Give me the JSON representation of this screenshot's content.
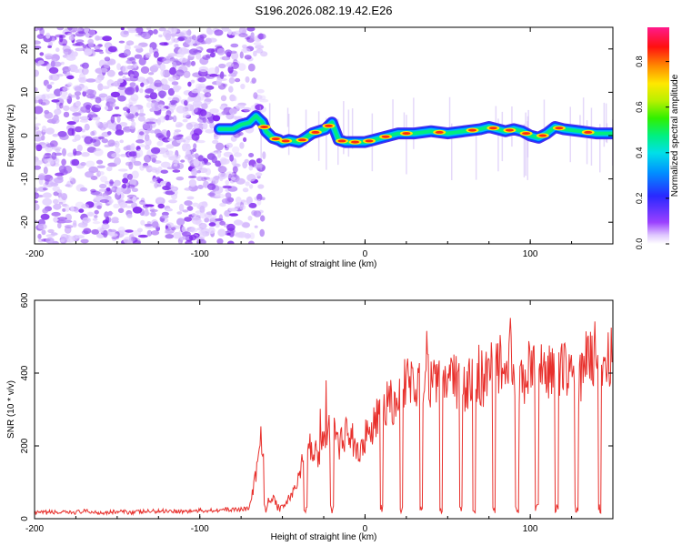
{
  "title": "S196.2026.082.19.42.E26",
  "chart_data": [
    {
      "type": "heatmap",
      "panel": "spectrogram",
      "xlabel": "Height of straight line (km)",
      "ylabel": "Frequency (Hz)",
      "xlim": [
        -200,
        150
      ],
      "ylim": [
        -25,
        25
      ],
      "xticks": [
        -200,
        -100,
        0,
        100
      ],
      "yticks": [
        -20,
        -10,
        0,
        10,
        20
      ],
      "ridge": {
        "x": [
          -88,
          -80,
          -75,
          -70,
          -66,
          -62,
          -60,
          -56,
          -52,
          -50,
          -46,
          -40,
          -36,
          -32,
          -28,
          -24,
          -20,
          -16,
          -12,
          -8,
          -4,
          0,
          5,
          10,
          15,
          20,
          30,
          40,
          50,
          60,
          70,
          75,
          80,
          85,
          90,
          95,
          100,
          105,
          110,
          115,
          120,
          130,
          140,
          150
        ],
        "y": [
          1.5,
          1.5,
          2.5,
          3.0,
          4.5,
          3.0,
          1.0,
          -0.5,
          -1.0,
          -1.5,
          -1.0,
          -1.5,
          -0.5,
          0.5,
          1.0,
          1.5,
          3.0,
          -1.0,
          -1.5,
          -1.5,
          -1.5,
          -1.5,
          -1.0,
          -0.5,
          0.0,
          0.5,
          0.5,
          1.0,
          0.5,
          1.0,
          1.5,
          2.0,
          1.5,
          1.0,
          1.5,
          1.0,
          0.0,
          -0.5,
          0.5,
          2.0,
          1.5,
          1.0,
          0.5,
          0.5
        ]
      },
      "noise_region_x": [
        -200,
        -75
      ],
      "colorbar": {
        "label": "Normalized spectral amplitude",
        "range": [
          0.0,
          0.95
        ],
        "ticks": [
          0.0,
          0.2,
          0.4,
          0.6,
          0.8
        ]
      }
    },
    {
      "type": "line",
      "panel": "snr",
      "xlabel": "Height of straight line (km)",
      "ylabel": "SNR (10 * v/v)",
      "xlim": [
        -200,
        150
      ],
      "ylim": [
        0,
        600
      ],
      "xticks": [
        -200,
        -100,
        0,
        100
      ],
      "yticks": [
        0,
        200,
        400,
        600
      ],
      "series": [
        {
          "name": "SNR",
          "color": "#e8302c",
          "x": [
            -200,
            -190,
            -180,
            -170,
            -160,
            -150,
            -140,
            -130,
            -120,
            -110,
            -100,
            -90,
            -80,
            -70,
            -66,
            -64,
            -62,
            -60,
            -58,
            -56,
            -52,
            -48,
            -44,
            -40,
            -36,
            -32,
            -28,
            -24,
            -20,
            -16,
            -12,
            -8,
            -4,
            0,
            4,
            8,
            12,
            16,
            20,
            24,
            28,
            32,
            36,
            40,
            44,
            48,
            52,
            56,
            60,
            64,
            68,
            72,
            76,
            80,
            84,
            88,
            92,
            96,
            100,
            104,
            108,
            112,
            116,
            120,
            124,
            128,
            132,
            136,
            140,
            144,
            148,
            150
          ],
          "y": [
            15,
            18,
            16,
            20,
            17,
            19,
            18,
            20,
            22,
            20,
            22,
            24,
            25,
            28,
            120,
            200,
            220,
            80,
            40,
            60,
            30,
            40,
            70,
            120,
            180,
            200,
            170,
            230,
            250,
            190,
            230,
            220,
            180,
            230,
            250,
            280,
            300,
            330,
            320,
            370,
            360,
            380,
            360,
            390,
            400,
            380,
            390,
            380,
            350,
            370,
            400,
            380,
            420,
            440,
            410,
            460,
            400,
            380,
            420,
            400,
            410,
            390,
            420,
            440,
            400,
            380,
            420,
            440,
            470,
            430,
            460,
            460
          ]
        }
      ]
    }
  ]
}
